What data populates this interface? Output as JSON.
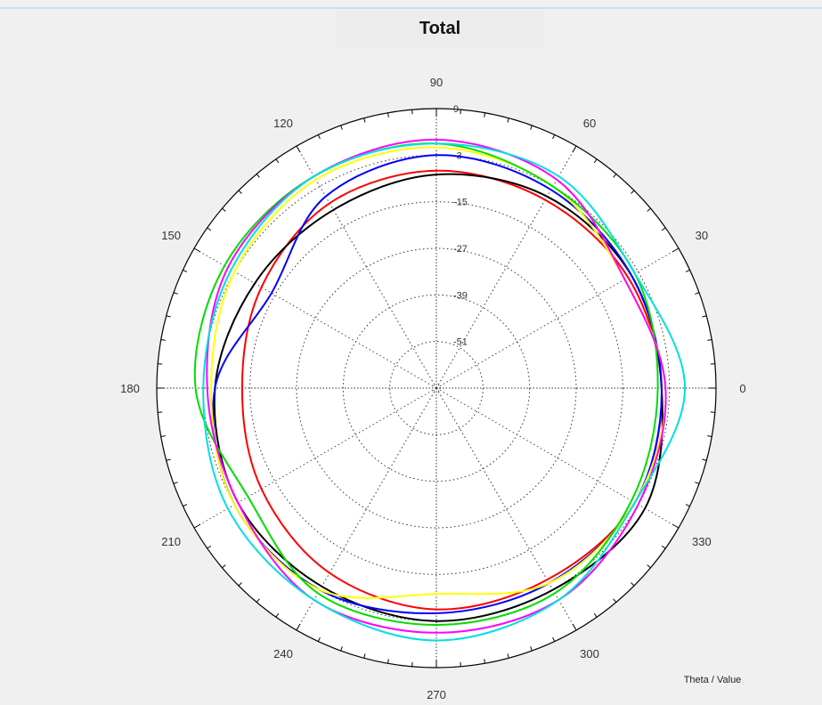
{
  "chart_data": {
    "type": "polar-line",
    "title": "Total",
    "axis_caption": "Theta / Value",
    "theta_tick_labels": [
      "0",
      "30",
      "60",
      "90",
      "120",
      "150",
      "180",
      "210",
      "240",
      "270",
      "300",
      "330"
    ],
    "theta_ticks_deg": [
      0,
      30,
      60,
      90,
      120,
      150,
      180,
      210,
      240,
      270,
      300,
      330
    ],
    "r_tick_labels": [
      "9",
      "-3",
      "-15",
      "-27",
      "-39",
      "-51"
    ],
    "r_ticks": [
      9,
      -3,
      -15,
      -27,
      -39,
      -51
    ],
    "r_range": [
      -63,
      9
    ],
    "theta_direction": "counterclockwise",
    "theta_zero": "right",
    "grid": true,
    "series": [
      {
        "color": "#ff0000",
        "theta_deg": [
          0,
          30,
          60,
          90,
          120,
          150,
          180,
          210,
          240,
          270,
          300,
          330,
          360
        ],
        "r": [
          -5,
          -6,
          -7,
          -7,
          -8,
          -11,
          -13,
          -11,
          -8,
          -6,
          -6,
          -4,
          -5
        ]
      },
      {
        "color": "#000000",
        "theta_deg": [
          0,
          30,
          60,
          90,
          120,
          150,
          180,
          210,
          240,
          270,
          300,
          330,
          360
        ],
        "r": [
          -5,
          -5,
          -6,
          -8,
          -10,
          -9,
          -6,
          -4,
          -4,
          -3,
          -3,
          -1,
          -5
        ]
      },
      {
        "color": "#0000ff",
        "theta_deg": [
          0,
          30,
          60,
          90,
          120,
          150,
          180,
          210,
          240,
          270,
          300,
          330,
          360
        ],
        "r": [
          -5,
          -5,
          -4,
          -3,
          -6,
          -14,
          -6,
          -3,
          -3,
          -5,
          -5,
          -4,
          -5
        ]
      },
      {
        "color": "#ffff00",
        "theta_deg": [
          0,
          30,
          60,
          90,
          120,
          150,
          180,
          210,
          240,
          270,
          300,
          330,
          360
        ],
        "r": [
          -4,
          -7,
          -3,
          -1,
          -1,
          -3,
          -5,
          -3,
          -3,
          -10,
          -5,
          -4,
          -4
        ]
      },
      {
        "color": "#00dd00",
        "theta_deg": [
          0,
          30,
          60,
          90,
          120,
          150,
          180,
          210,
          240,
          270,
          300,
          330,
          360
        ],
        "r": [
          -6,
          -4,
          -3,
          0,
          0,
          0,
          -1,
          -7,
          -2,
          -2,
          -2,
          -5,
          -6
        ]
      },
      {
        "color": "#ff00ff",
        "theta_deg": [
          0,
          30,
          60,
          90,
          120,
          150,
          180,
          210,
          240,
          270,
          300,
          330,
          360
        ],
        "r": [
          -4,
          -7,
          -1,
          1,
          0,
          -1,
          -4,
          -4,
          0,
          0,
          0,
          -3,
          -4
        ]
      },
      {
        "color": "#00e0e0",
        "theta_deg": [
          0,
          30,
          60,
          90,
          120,
          150,
          180,
          210,
          240,
          270,
          300,
          330,
          360
        ],
        "r": [
          1,
          -4,
          0,
          0,
          0,
          -2,
          -3,
          -1,
          0,
          2,
          0,
          -4,
          1
        ]
      }
    ]
  }
}
